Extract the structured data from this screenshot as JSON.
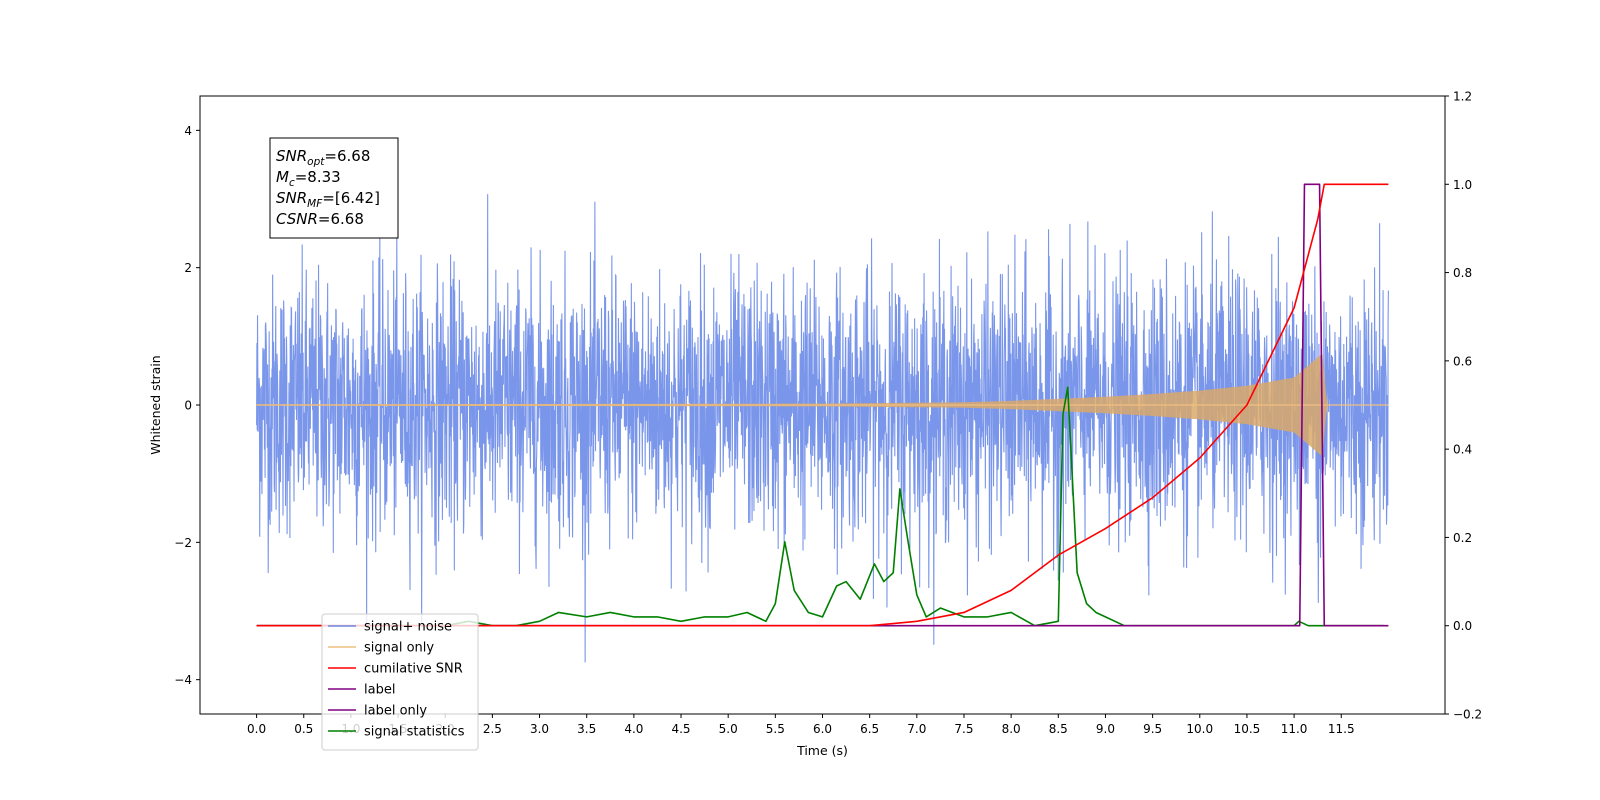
{
  "chart_data": {
    "type": "line",
    "title": "",
    "xlabel": "Time (s)",
    "ylabel": "Whitened strain",
    "y2label": "",
    "xlim": [
      -0.6,
      12.6
    ],
    "ylim": [
      -4.5,
      4.5
    ],
    "y2lim": [
      -0.2,
      1.2
    ],
    "x_ticks": [
      "0.0",
      "0.5",
      "1.0",
      "1.5",
      "2.0",
      "2.5",
      "3.0",
      "3.5",
      "4.0",
      "4.5",
      "5.0",
      "5.5",
      "6.0",
      "6.5",
      "7.0",
      "7.5",
      "8.0",
      "8.5",
      "9.0",
      "9.5",
      "10.0",
      "10.5",
      "11.0",
      "11.5"
    ],
    "y_ticks": [
      "−4",
      "−2",
      "0",
      "2",
      "4"
    ],
    "y2_ticks": [
      "−0.2",
      "0.0",
      "0.2",
      "0.4",
      "0.6",
      "0.8",
      "1.0",
      "1.2"
    ],
    "grid": false,
    "legend_position": "lower-left",
    "annotation": {
      "lines": [
        {
          "base": "SNR",
          "sub": "opt",
          "value": "=6.68"
        },
        {
          "base": "M",
          "sub": "c",
          "value": "=8.33"
        },
        {
          "base": "SNR",
          "sub": "MF",
          "value": "=[6.42]"
        },
        {
          "base": "CSNR",
          "sub": "",
          "value": "=6.68"
        }
      ]
    },
    "series": [
      {
        "name": "signal+ noise",
        "color": "#4169e1",
        "axis": "left",
        "noise_band": {
          "x_start": 0.0,
          "x_end": 12.0,
          "typical_abs": 1.7,
          "max_abs": 4.1
        }
      },
      {
        "name": "signal only",
        "color": "#f0c080",
        "axis": "left",
        "envelope": {
          "x": [
            0.0,
            6.0,
            7.5,
            8.0,
            8.5,
            9.0,
            9.5,
            10.0,
            10.5,
            11.0,
            11.3,
            11.35,
            12.0
          ],
          "amp": [
            0.01,
            0.02,
            0.04,
            0.06,
            0.09,
            0.12,
            0.16,
            0.21,
            0.28,
            0.4,
            0.75,
            0.0,
            0.0
          ]
        }
      },
      {
        "name": "cumilative SNR",
        "color": "#ff0000",
        "axis": "right",
        "x": [
          0.0,
          6.5,
          7.0,
          7.5,
          8.0,
          8.5,
          9.0,
          9.5,
          10.0,
          10.5,
          11.0,
          11.25,
          11.32,
          11.34,
          12.0
        ],
        "y": [
          0.0,
          0.0,
          0.01,
          0.03,
          0.08,
          0.16,
          0.22,
          0.29,
          0.38,
          0.5,
          0.72,
          0.92,
          1.0,
          1.0,
          1.0
        ]
      },
      {
        "name": "label",
        "color": "#800080",
        "axis": "right",
        "x": [
          0.0,
          11.06,
          11.11,
          11.27,
          11.32,
          12.0
        ],
        "y": [
          0.0,
          0.0,
          1.0,
          1.0,
          0.0,
          0.0
        ]
      },
      {
        "name": "label only",
        "color": "#800080",
        "axis": "right",
        "x": [],
        "y": []
      },
      {
        "name": "signal statistics",
        "color": "#008000",
        "axis": "right",
        "x": [
          0.0,
          0.5,
          1.0,
          1.5,
          2.0,
          2.25,
          2.5,
          2.75,
          3.0,
          3.2,
          3.5,
          3.75,
          4.0,
          4.25,
          4.5,
          4.75,
          5.0,
          5.2,
          5.4,
          5.5,
          5.6,
          5.7,
          5.85,
          6.0,
          6.15,
          6.25,
          6.4,
          6.55,
          6.65,
          6.75,
          6.82,
          6.9,
          7.0,
          7.1,
          7.25,
          7.5,
          7.75,
          8.0,
          8.25,
          8.5,
          8.55,
          8.6,
          8.7,
          8.8,
          8.9,
          9.0,
          9.2,
          9.5,
          10.0,
          10.5,
          11.0,
          11.05,
          11.15,
          11.25,
          11.5,
          11.95
        ],
        "y": [
          0.0,
          0.0,
          0.0,
          0.0,
          0.0,
          0.01,
          0.0,
          0.0,
          0.01,
          0.03,
          0.02,
          0.03,
          0.02,
          0.02,
          0.01,
          0.02,
          0.02,
          0.03,
          0.01,
          0.05,
          0.19,
          0.08,
          0.03,
          0.02,
          0.09,
          0.1,
          0.06,
          0.14,
          0.1,
          0.12,
          0.31,
          0.2,
          0.07,
          0.02,
          0.04,
          0.02,
          0.02,
          0.03,
          0.0,
          0.01,
          0.48,
          0.54,
          0.12,
          0.05,
          0.03,
          0.02,
          0.0,
          0.0,
          0.0,
          0.0,
          0.0,
          0.01,
          0.0,
          0.0,
          0.0,
          0.0
        ]
      }
    ]
  }
}
